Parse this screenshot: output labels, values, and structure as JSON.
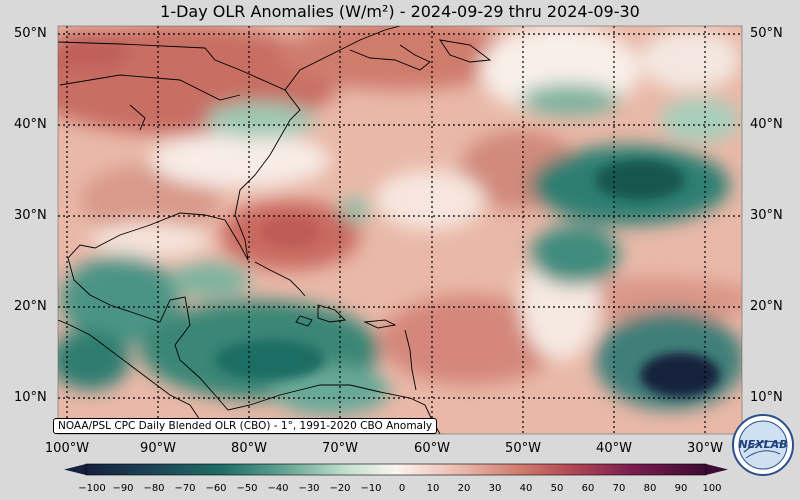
{
  "title": {
    "text": "1-Day OLR Anomalies (W/m²) - 2024-09-29 thru 2024-09-30"
  },
  "map": {
    "lat_labels": [
      "50°N",
      "40°N",
      "30°N",
      "20°N",
      "10°N"
    ],
    "lon_labels": [
      "100°W",
      "90°W",
      "80°W",
      "70°W",
      "60°W",
      "50°W",
      "40°W",
      "30°W"
    ],
    "credit": "NOAA/PSL CPC Daily Blended OLR (CBO) - 1°, 1991-2020 CBO Anomaly",
    "extent": {
      "lon": [
        -102,
        -27
      ],
      "lat": [
        6.5,
        51.5
      ]
    },
    "colors": {
      "negative_dark": "#15203f",
      "negative_teal": "#1e6e64",
      "negative_light": "#a9d1bc",
      "neutral": "#fbf4f0",
      "positive_light": "#e3a99a",
      "positive_mid": "#c3655e",
      "positive_dark": "#7b1d4f",
      "positive_max": "#3d0a33"
    }
  },
  "colorbar": {
    "ticks": [
      "−100",
      "−90",
      "−80",
      "−70",
      "−60",
      "−50",
      "−40",
      "−30",
      "−20",
      "−10",
      "0",
      "10",
      "20",
      "30",
      "40",
      "50",
      "60",
      "70",
      "80",
      "90",
      "100"
    ]
  },
  "logo": {
    "text": "NEXLAB"
  }
}
